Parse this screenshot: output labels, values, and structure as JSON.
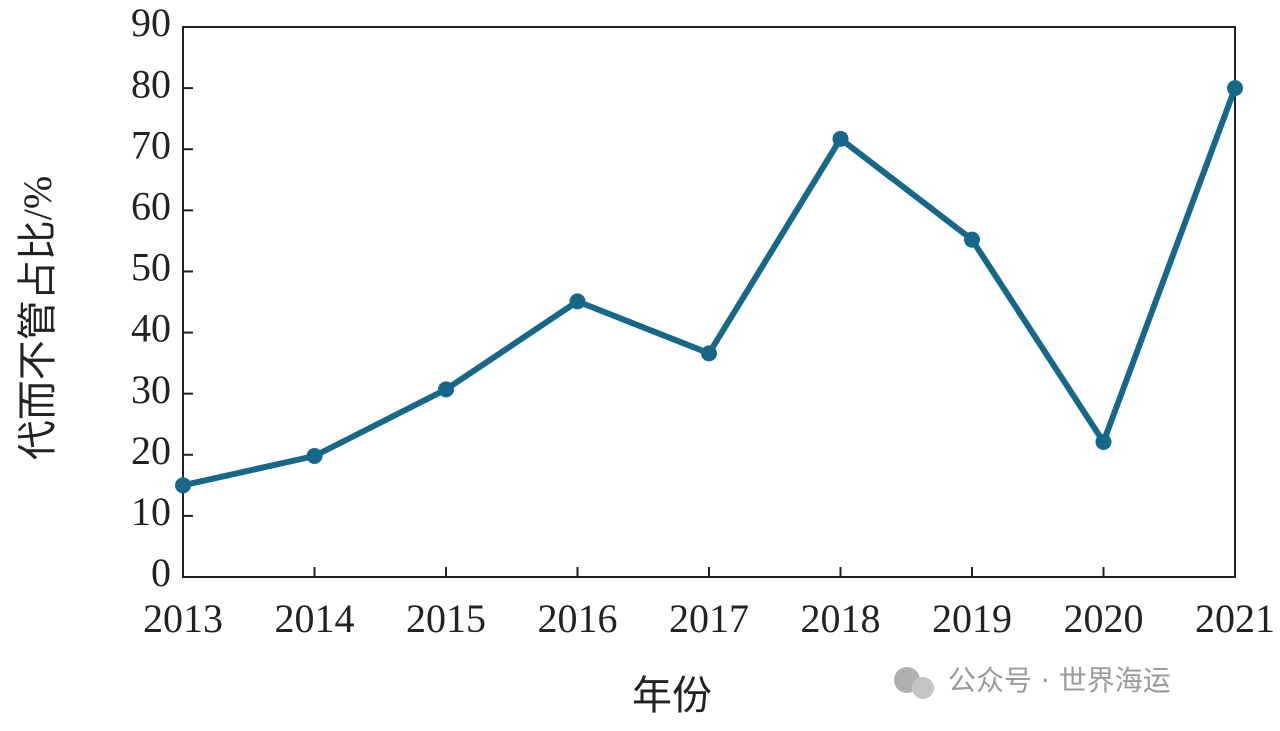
{
  "chart_data": {
    "type": "line",
    "x_label": "年份",
    "y_label": "代而不管占比/%",
    "x": [
      2013,
      2014,
      2015,
      2016,
      2017,
      2018,
      2019,
      2020,
      2021
    ],
    "xlim": [
      2013,
      2021
    ],
    "xticks": [
      2013,
      2014,
      2015,
      2016,
      2017,
      2018,
      2019,
      2020,
      2021
    ],
    "ylim": [
      0,
      90
    ],
    "yticks": [
      0,
      10,
      20,
      30,
      40,
      50,
      60,
      70,
      80,
      90
    ],
    "series": [
      {
        "color": "#16688a",
        "values": [
          15,
          19.8,
          30.7,
          45.1,
          36.6,
          71.7,
          55.2,
          22.1,
          80
        ]
      }
    ],
    "watermark": "公众号 · 世界海运"
  }
}
